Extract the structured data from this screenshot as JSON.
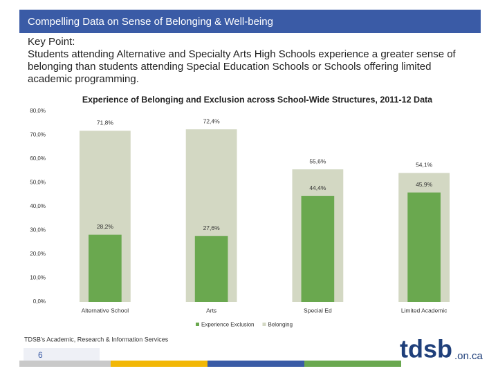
{
  "header": {
    "title": "Compelling Data on Sense of Belonging & Well-being"
  },
  "key_point": {
    "label": "Key Point:",
    "text": "Students attending Alternative and Specialty Arts High Schools experience a greater sense of belonging than students attending Special Education Schools or Schools offering limited academic programming."
  },
  "chart_data": {
    "type": "bar",
    "title": "Experience of Belonging and Exclusion across School-Wide Structures, 2011-12 Data",
    "categories": [
      "Alternative School",
      "Arts",
      "Special Ed",
      "Limited Academic"
    ],
    "series": [
      {
        "name": "Experience Exclusion",
        "color": "#6aa84f",
        "values": [
          28.2,
          27.6,
          44.4,
          45.9
        ],
        "value_labels": [
          "28,2%",
          "27,6%",
          "44,4%",
          "45,9%"
        ]
      },
      {
        "name": "Belonging",
        "color": "#d3d8c3",
        "values": [
          71.8,
          72.4,
          55.6,
          54.1
        ],
        "value_labels": [
          "71,8%",
          "72,4%",
          "55,6%",
          "54,1%"
        ]
      }
    ],
    "ylim": [
      0,
      80
    ],
    "yticks": [
      {
        "value": 0,
        "label": "0,0%"
      },
      {
        "value": 10,
        "label": "10,0%"
      },
      {
        "value": 20,
        "label": "20,0%"
      },
      {
        "value": 30,
        "label": "30,0%"
      },
      {
        "value": 40,
        "label": "40,0%"
      },
      {
        "value": 50,
        "label": "50,0%"
      },
      {
        "value": 60,
        "label": "60,0%"
      },
      {
        "value": 70,
        "label": "70,0%"
      },
      {
        "value": 80,
        "label": "80,0%"
      }
    ],
    "grid": false,
    "legend": "bottom"
  },
  "footer": {
    "credit": "TDSB's Academic, Research & Information Services",
    "page": 6,
    "logo": "tdsb",
    "logo_suffix": ".on.ca"
  }
}
